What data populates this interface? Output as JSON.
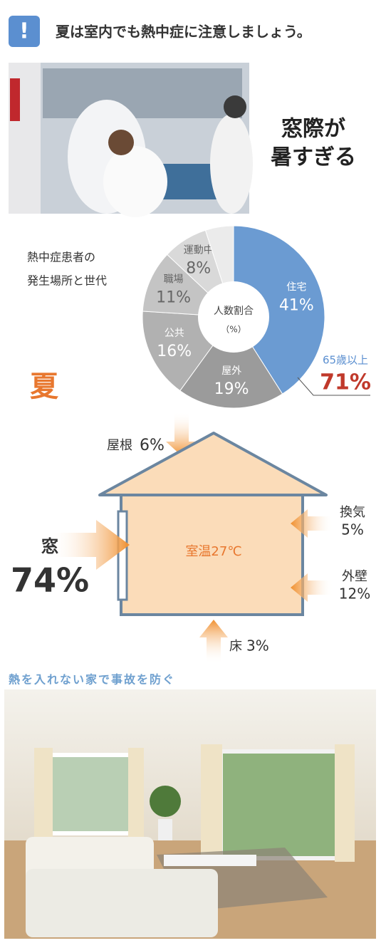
{
  "header": {
    "title": "夏は室内でも熱中症に注意しましょう。",
    "icon": "!"
  },
  "callout": {
    "line1": "窓際が",
    "line2": "暑すぎる"
  },
  "chart_data": {
    "type": "pie",
    "title_lines": [
      "熱中症患者の",
      "発生場所と世代"
    ],
    "center_lines": [
      "人数割合",
      "（%）"
    ],
    "categories": [
      "住宅",
      "屋外",
      "公共",
      "職場",
      "運動中",
      null
    ],
    "values": [
      41,
      19,
      16,
      11,
      8,
      5
    ],
    "value_labels": [
      "41%",
      "19%",
      "16%",
      "11%",
      "8%",
      null
    ],
    "colors": [
      "#6b9bd2",
      "#9b9b9b",
      "#b1b1b1",
      "#c4c4c4",
      "#d9d9d9",
      "#ebebeb"
    ],
    "annotation": {
      "label": "65歳以上",
      "value_label": "71%"
    }
  },
  "season": "夏",
  "diagram": {
    "room": "室温27℃",
    "roof": {
      "label": "屋根",
      "value": "6%"
    },
    "window": {
      "label": "窓",
      "value": "74%"
    },
    "vent": {
      "label": "換気",
      "value": "5%"
    },
    "wall": {
      "label": "外壁",
      "value": "12%"
    },
    "floor": {
      "label": "床",
      "value": "3%"
    }
  },
  "footer": {
    "headline": "熱を入れない家で事故を防ぐ"
  }
}
